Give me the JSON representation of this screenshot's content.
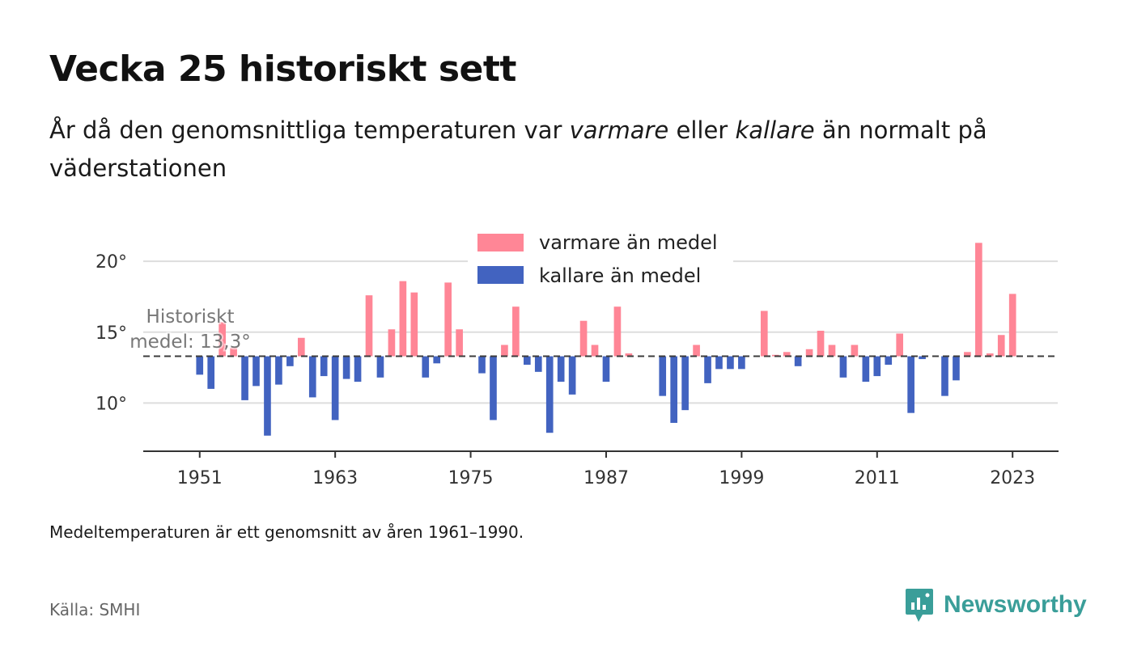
{
  "header": {
    "title": "Vecka 25 historiskt sett",
    "subtitle_prefix": "År då den genomsnittliga temperaturen var ",
    "subtitle_warm": "varmare",
    "subtitle_mid": " eller ",
    "subtitle_cold": "kallare",
    "subtitle_suffix": " än normalt på väderstationen"
  },
  "footer": {
    "note": "Medeltemperaturen är ett genomsnitt av åren 1961–1990.",
    "source": "Källa: SMHI",
    "brand": "Newsworthy"
  },
  "colors": {
    "warm": "#ff8696",
    "cold": "#4263c0",
    "brand": "#3a9e99"
  },
  "icons": {
    "brand_logo": "newsworthy-logo-icon"
  },
  "chart_data": {
    "type": "bar",
    "baseline": 13.3,
    "mean_label_line1": "Historiskt",
    "mean_label_line2": "medel: 13,3°",
    "ylim": [
      6.6,
      23.6
    ],
    "yticks": [
      10,
      15,
      20
    ],
    "ytick_labels": [
      "10°",
      "15°",
      "20°"
    ],
    "xlim": [
      1946,
      2027
    ],
    "xticks": [
      1951,
      1963,
      1975,
      1987,
      1999,
      2011,
      2023
    ],
    "xtick_labels": [
      "1951",
      "1963",
      "1975",
      "1987",
      "1999",
      "2011",
      "2023"
    ],
    "legend": {
      "position": "top-center",
      "warm_label": "varmare än medel",
      "cold_label": "kallare än medel"
    },
    "grid": true,
    "years": [
      1951,
      1952,
      1953,
      1954,
      1955,
      1956,
      1957,
      1958,
      1959,
      1960,
      1961,
      1962,
      1963,
      1964,
      1965,
      1966,
      1967,
      1968,
      1969,
      1970,
      1971,
      1972,
      1973,
      1974,
      1975,
      1976,
      1977,
      1978,
      1979,
      1980,
      1981,
      1982,
      1983,
      1984,
      1985,
      1986,
      1987,
      1988,
      1989,
      1990,
      1991,
      1992,
      1993,
      1994,
      1995,
      1996,
      1997,
      1998,
      1999,
      2000,
      2001,
      2002,
      2003,
      2004,
      2005,
      2006,
      2007,
      2008,
      2009,
      2010,
      2011,
      2012,
      2013,
      2014,
      2015,
      2016,
      2017,
      2018,
      2019,
      2020,
      2021,
      2022,
      2023,
      2024
    ],
    "values": [
      12.0,
      11.0,
      15.7,
      13.9,
      10.2,
      11.2,
      7.7,
      11.3,
      12.6,
      14.6,
      10.4,
      11.9,
      8.8,
      11.7,
      11.5,
      17.6,
      11.8,
      15.2,
      18.6,
      17.8,
      11.8,
      12.8,
      18.5,
      15.2,
      null,
      12.1,
      8.8,
      14.1,
      16.8,
      12.7,
      12.2,
      7.9,
      11.5,
      10.6,
      15.8,
      14.1,
      11.5,
      16.8,
      13.5,
      null,
      null,
      10.5,
      8.6,
      9.5,
      14.1,
      11.4,
      12.4,
      12.4,
      12.4,
      null,
      16.5,
      13.4,
      13.6,
      12.6,
      13.8,
      15.1,
      14.1,
      11.8,
      14.1,
      11.5,
      11.9,
      12.7,
      14.9,
      9.3,
      13.1,
      null,
      10.5,
      11.6,
      13.6,
      21.3,
      13.5,
      14.8,
      17.7,
      null
    ]
  }
}
